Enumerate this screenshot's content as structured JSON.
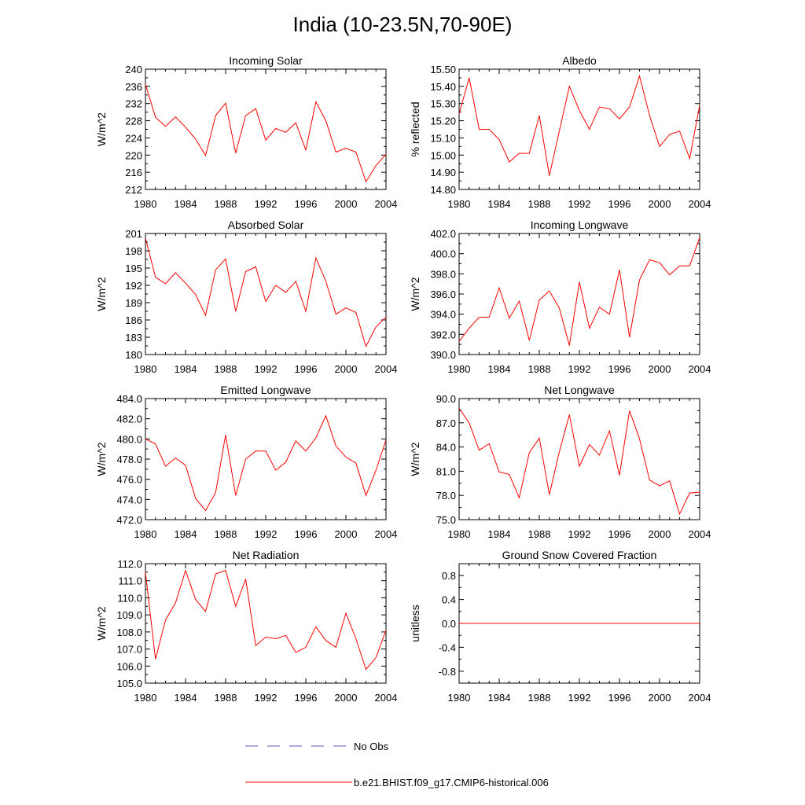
{
  "figure_title": "India (10-23.5N,70-90E)",
  "colors": {
    "model": "#ff0000",
    "obs": "#5a5ab4",
    "axis": "#000000"
  },
  "legend": {
    "obs_label": "No Obs",
    "model_label": "b.e21.BHIST.f09_g17.CMIP6-historical.006"
  },
  "chart_data": [
    {
      "type": "line",
      "title": "Incoming Solar",
      "ylabel": "W/m^2",
      "xlim": [
        1980,
        2004
      ],
      "ylim": [
        212,
        240
      ],
      "xticks": [
        1980,
        1984,
        1988,
        1992,
        1996,
        2000,
        2004
      ],
      "yticks": [
        "212",
        "216",
        "220",
        "224",
        "228",
        "232",
        "236",
        "240"
      ],
      "yticks_val": [
        212,
        216,
        220,
        224,
        228,
        232,
        236,
        240
      ],
      "x": [
        1980,
        1981,
        1982,
        1983,
        1984,
        1985,
        1986,
        1987,
        1988,
        1989,
        1990,
        1991,
        1992,
        1993,
        1994,
        1995,
        1996,
        1997,
        1998,
        1999,
        2000,
        2001,
        2002,
        2003,
        2004
      ],
      "series": [
        {
          "name": "b.e21.BHIST.f09_g17.CMIP6-historical.006",
          "values": [
            236.5,
            228.8,
            226.7,
            228.9,
            226.5,
            223.7,
            219.9,
            229.2,
            232.1,
            220.5,
            229.2,
            230.8,
            223.5,
            226.2,
            225.3,
            227.5,
            221.2,
            232.4,
            228.0,
            220.7,
            221.6,
            220.7,
            213.8,
            217.6,
            220.2
          ]
        }
      ]
    },
    {
      "type": "line",
      "title": "Albedo",
      "ylabel": "% reflected",
      "xlim": [
        1980,
        2004
      ],
      "ylim": [
        14.8,
        15.5
      ],
      "xticks": [
        1980,
        1984,
        1988,
        1992,
        1996,
        2000,
        2004
      ],
      "yticks": [
        "14.80",
        "14.90",
        "15.00",
        "15.10",
        "15.20",
        "15.30",
        "15.40",
        "15.50"
      ],
      "yticks_val": [
        14.8,
        14.9,
        15.0,
        15.1,
        15.2,
        15.3,
        15.4,
        15.5
      ],
      "x": [
        1980,
        1981,
        1982,
        1983,
        1984,
        1985,
        1986,
        1987,
        1988,
        1989,
        1990,
        1991,
        1992,
        1993,
        1994,
        1995,
        1996,
        1997,
        1998,
        1999,
        2000,
        2001,
        2002,
        2003,
        2004
      ],
      "series": [
        {
          "name": "b.e21.BHIST.f09_g17.CMIP6-historical.006",
          "values": [
            15.24,
            15.45,
            15.15,
            15.15,
            15.09,
            14.96,
            15.01,
            15.01,
            15.23,
            14.88,
            15.14,
            15.4,
            15.26,
            15.15,
            15.28,
            15.27,
            15.21,
            15.28,
            15.46,
            15.23,
            15.05,
            15.12,
            15.14,
            14.98,
            15.29
          ]
        }
      ]
    },
    {
      "type": "line",
      "title": "Absorbed Solar",
      "ylabel": "W/m^2",
      "xlim": [
        1980,
        2004
      ],
      "ylim": [
        180,
        201
      ],
      "xticks": [
        1980,
        1984,
        1988,
        1992,
        1996,
        2000,
        2004
      ],
      "yticks": [
        "180",
        "183",
        "186",
        "189",
        "192",
        "195",
        "198",
        "201"
      ],
      "yticks_val": [
        180,
        183,
        186,
        189,
        192,
        195,
        198,
        201
      ],
      "x": [
        1980,
        1981,
        1982,
        1983,
        1984,
        1985,
        1986,
        1987,
        1988,
        1989,
        1990,
        1991,
        1992,
        1993,
        1994,
        1995,
        1996,
        1997,
        1998,
        1999,
        2000,
        2001,
        2002,
        2003,
        2004
      ],
      "series": [
        {
          "name": "b.e21.BHIST.f09_g17.CMIP6-historical.006",
          "values": [
            200.2,
            193.4,
            192.3,
            194.2,
            192.4,
            190.4,
            186.8,
            194.7,
            196.6,
            187.5,
            194.4,
            195.2,
            189.2,
            192.0,
            190.8,
            192.7,
            187.5,
            196.8,
            192.7,
            187.0,
            188.1,
            187.3,
            181.4,
            184.8,
            186.5
          ]
        }
      ]
    },
    {
      "type": "line",
      "title": "Incoming Longwave",
      "ylabel": "W/m^2",
      "xlim": [
        1980,
        2004
      ],
      "ylim": [
        390,
        402
      ],
      "xticks": [
        1980,
        1984,
        1988,
        1992,
        1996,
        2000,
        2004
      ],
      "yticks": [
        "390.0",
        "392.0",
        "394.0",
        "396.0",
        "398.0",
        "400.0",
        "402.0"
      ],
      "yticks_val": [
        390,
        392,
        394,
        396,
        398,
        400,
        402
      ],
      "x": [
        1980,
        1981,
        1982,
        1983,
        1984,
        1985,
        1986,
        1987,
        1988,
        1989,
        1990,
        1991,
        1992,
        1993,
        1994,
        1995,
        1996,
        1997,
        1998,
        1999,
        2000,
        2001,
        2002,
        2003,
        2004
      ],
      "series": [
        {
          "name": "b.e21.BHIST.f09_g17.CMIP6-historical.006",
          "values": [
            391.3,
            392.6,
            393.7,
            393.7,
            396.6,
            393.6,
            395.3,
            391.4,
            395.4,
            396.3,
            394.6,
            390.9,
            397.2,
            392.6,
            394.7,
            394.0,
            398.4,
            391.7,
            397.4,
            399.4,
            399.1,
            397.9,
            398.8,
            398.8,
            401.6
          ]
        }
      ]
    },
    {
      "type": "line",
      "title": "Emitted Longwave",
      "ylabel": "W/m^2",
      "xlim": [
        1980,
        2004
      ],
      "ylim": [
        472,
        484
      ],
      "xticks": [
        1980,
        1984,
        1988,
        1992,
        1996,
        2000,
        2004
      ],
      "yticks": [
        "472.0",
        "474.0",
        "476.0",
        "478.0",
        "480.0",
        "482.0",
        "484.0"
      ],
      "yticks_val": [
        472,
        474,
        476,
        478,
        480,
        482,
        484
      ],
      "x": [
        1980,
        1981,
        1982,
        1983,
        1984,
        1985,
        1986,
        1987,
        1988,
        1989,
        1990,
        1991,
        1992,
        1993,
        1994,
        1995,
        1996,
        1997,
        1998,
        1999,
        2000,
        2001,
        2002,
        2003,
        2004
      ],
      "series": [
        {
          "name": "b.e21.BHIST.f09_g17.CMIP6-historical.006",
          "values": [
            480.0,
            479.5,
            477.3,
            478.1,
            477.4,
            474.1,
            472.9,
            474.7,
            480.4,
            474.4,
            478.0,
            478.8,
            478.8,
            476.9,
            477.7,
            479.8,
            478.8,
            480.1,
            482.3,
            479.3,
            478.2,
            477.6,
            474.4,
            476.9,
            479.9
          ]
        }
      ]
    },
    {
      "type": "line",
      "title": "Net Longwave",
      "ylabel": "W/m^2",
      "xlim": [
        1980,
        2004
      ],
      "ylim": [
        75,
        90
      ],
      "xticks": [
        1980,
        1984,
        1988,
        1992,
        1996,
        2000,
        2004
      ],
      "yticks": [
        "75.0",
        "78.0",
        "81.0",
        "84.0",
        "87.0",
        "90.0"
      ],
      "yticks_val": [
        75,
        78,
        81,
        84,
        87,
        90
      ],
      "x": [
        1980,
        1981,
        1982,
        1983,
        1984,
        1985,
        1986,
        1987,
        1988,
        1989,
        1990,
        1991,
        1992,
        1993,
        1994,
        1995,
        1996,
        1997,
        1998,
        1999,
        2000,
        2001,
        2002,
        2003,
        2004
      ],
      "series": [
        {
          "name": "b.e21.BHIST.f09_g17.CMIP6-historical.006",
          "values": [
            88.8,
            87.0,
            83.6,
            84.4,
            80.9,
            80.6,
            77.7,
            83.3,
            85.1,
            78.1,
            83.4,
            88.0,
            81.6,
            84.3,
            83.0,
            86.0,
            80.5,
            88.5,
            85.0,
            79.9,
            79.2,
            79.8,
            75.7,
            78.3,
            78.4
          ]
        }
      ]
    },
    {
      "type": "line",
      "title": "Net Radiation",
      "ylabel": "W/m^2",
      "xlim": [
        1980,
        2004
      ],
      "ylim": [
        105,
        112
      ],
      "xticks": [
        1980,
        1984,
        1988,
        1992,
        1996,
        2000,
        2004
      ],
      "yticks": [
        "105.0",
        "106.0",
        "107.0",
        "108.0",
        "109.0",
        "110.0",
        "111.0",
        "112.0"
      ],
      "yticks_val": [
        105,
        106,
        107,
        108,
        109,
        110,
        111,
        112
      ],
      "x": [
        1980,
        1981,
        1982,
        1983,
        1984,
        1985,
        1986,
        1987,
        1988,
        1989,
        1990,
        1991,
        1992,
        1993,
        1994,
        1995,
        1996,
        1997,
        1998,
        1999,
        2000,
        2001,
        2002,
        2003,
        2004
      ],
      "series": [
        {
          "name": "b.e21.BHIST.f09_g17.CMIP6-historical.006",
          "values": [
            111.5,
            106.4,
            108.7,
            109.7,
            111.6,
            109.9,
            109.2,
            111.4,
            111.6,
            109.5,
            111.1,
            107.2,
            107.7,
            107.6,
            107.8,
            106.8,
            107.1,
            108.3,
            107.5,
            107.1,
            109.1,
            107.6,
            105.8,
            106.5,
            108.1
          ]
        }
      ]
    },
    {
      "type": "line",
      "title": "Ground Snow Covered Fraction",
      "ylabel": "unitless",
      "xlim": [
        1980,
        2004
      ],
      "ylim": [
        -1.0,
        1.0
      ],
      "xticks": [
        1980,
        1984,
        1988,
        1992,
        1996,
        2000,
        2004
      ],
      "yticks": [
        "-0.8",
        "-0.4",
        "0.0",
        "0.4",
        "0.8"
      ],
      "yticks_val": [
        -0.8,
        -0.4,
        0.0,
        0.4,
        0.8
      ],
      "x": [
        1980,
        2004
      ],
      "series": [
        {
          "name": "b.e21.BHIST.f09_g17.CMIP6-historical.006",
          "values": [
            0.0,
            0.0
          ]
        }
      ]
    }
  ]
}
